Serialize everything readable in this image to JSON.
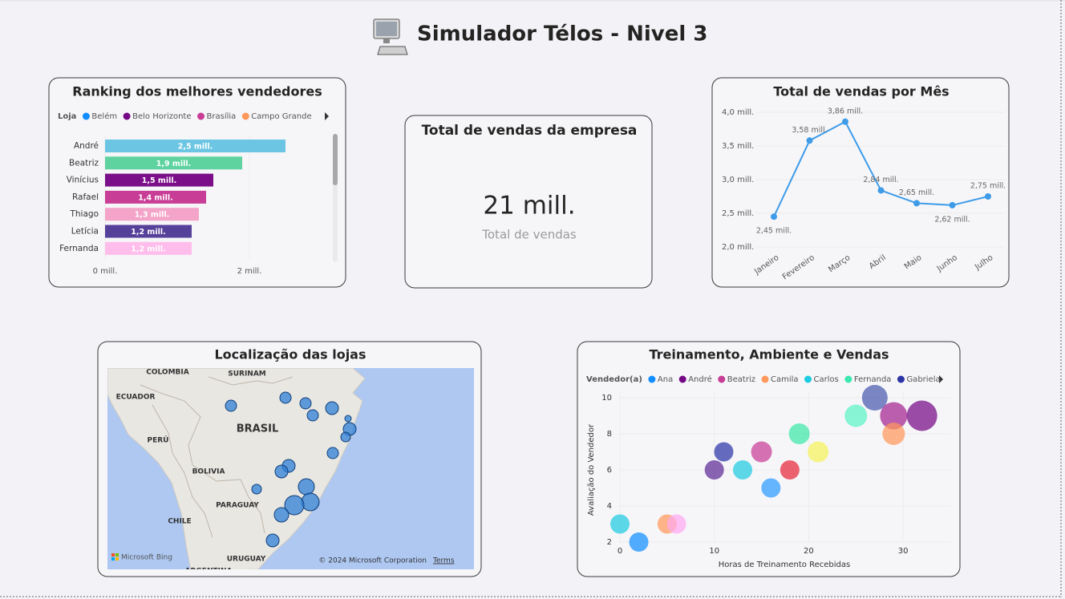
{
  "header": {
    "title": "Simulador Télos - Nivel 3"
  },
  "kpi": {
    "title": "Total de vendas da empresa",
    "value": "21 mill.",
    "label": "Total de vendas"
  },
  "map": {
    "title": "Localização das lojas",
    "labels": [
      "COLOMBIA",
      "SURINAM",
      "ECUADOR",
      "BRASIL",
      "PERÚ",
      "BOLIVIA",
      "PARAGUAY",
      "CHILE",
      "URUGUAY",
      "ARGENTINA"
    ],
    "attribution": "Microsoft Bing",
    "copyright": "© 2024 Microsoft Corporation",
    "terms": "Terms"
  },
  "chart_data": [
    {
      "type": "bar",
      "orientation": "horizontal",
      "title": "Ranking dos melhores vendedores",
      "legend": {
        "title": "Loja",
        "items": [
          {
            "name": "Belém",
            "color": "#118DFF"
          },
          {
            "name": "Belo Horizonte",
            "color": "#750985"
          },
          {
            "name": "Brasília",
            "color": "#C83D95"
          },
          {
            "name": "Campo Grande",
            "color": "#FF985A"
          }
        ]
      },
      "categories": [
        "André",
        "Beatriz",
        "Vinícius",
        "Rafael",
        "Thiago",
        "Letícia",
        "Fernanda"
      ],
      "values": [
        2.5,
        1.9,
        1.5,
        1.4,
        1.3,
        1.2,
        1.2
      ],
      "value_labels": [
        "2,5 mill.",
        "1,9 mill.",
        "1,5 mill.",
        "1,4 mill.",
        "1,3 mill.",
        "1,2 mill.",
        "1,2 mill."
      ],
      "colors": [
        "#6CC6E3",
        "#5ED3A0",
        "#7B0F8A",
        "#C83D95",
        "#F4A4C8",
        "#55409A",
        "#FFBDEB"
      ],
      "xlim": [
        0,
        3
      ],
      "xticks": [
        {
          "value": 0,
          "label": "0 mill."
        },
        {
          "value": 2,
          "label": "2 mill."
        }
      ],
      "grid": true
    },
    {
      "type": "line",
      "title": "Total de vendas por Mês",
      "categories": [
        "Janeiro",
        "Fevereiro",
        "Março",
        "Abril",
        "Maio",
        "Junho",
        "Julho"
      ],
      "values": [
        2.45,
        3.58,
        3.86,
        2.84,
        2.65,
        2.62,
        2.75
      ],
      "value_labels": [
        "2,45 mill.",
        "3,58 mill.",
        "3,86 mill.",
        "2,84 mill.",
        "2,65 mill.",
        "2,62 mill.",
        "2,75 mill."
      ],
      "color": "#3E9BE8",
      "ylim": [
        2,
        4
      ],
      "yticks": [
        {
          "value": 2,
          "label": "2,0 mill."
        },
        {
          "value": 2.5,
          "label": "2,5 mill."
        },
        {
          "value": 3,
          "label": "3,0 mill."
        },
        {
          "value": 3.5,
          "label": "3,5 mill."
        },
        {
          "value": 4,
          "label": "4,0 mill."
        }
      ],
      "grid": true
    },
    {
      "type": "scatter",
      "title": "Treinamento, Ambiente e Vendas",
      "x_label": "Horas de Treinamento Recebidas",
      "y_label": "Avaliação do Vendedor",
      "legend": {
        "title": "Vendedor(a)",
        "items": [
          {
            "name": "Ana",
            "color": "#118DFF"
          },
          {
            "name": "André",
            "color": "#750985"
          },
          {
            "name": "Beatriz",
            "color": "#C83D95"
          },
          {
            "name": "Camila",
            "color": "#FF985A"
          },
          {
            "name": "Carlos",
            "color": "#1ECBE1"
          },
          {
            "name": "Fernanda",
            "color": "#3DE8B0"
          },
          {
            "name": "Gabriela",
            "color": "#2B35A6"
          }
        ]
      },
      "x": [
        0,
        2,
        5,
        6,
        10,
        11,
        13,
        15,
        16,
        18,
        19,
        21,
        25,
        27,
        29,
        29,
        32
      ],
      "y": [
        3,
        2,
        3,
        3,
        6,
        7,
        6,
        7,
        5,
        6,
        8,
        7,
        9,
        10,
        9,
        8,
        9
      ],
      "sizes": [
        12,
        12,
        12,
        12,
        12,
        12,
        12,
        13,
        12,
        12,
        13,
        13,
        14,
        16,
        17,
        14,
        19
      ],
      "colors": [
        "#1ECBE1",
        "#118DFF",
        "#FF985A",
        "#FFA9F0",
        "#5B2A96",
        "#2B35A6",
        "#1ECBE1",
        "#C83D95",
        "#2C9BFF",
        "#E8273A",
        "#3DE8A8",
        "#F7F35A",
        "#5CF2C5",
        "#4A5AAE",
        "#A3238F",
        "#FF985A",
        "#750985"
      ],
      "xlim": [
        0,
        35
      ],
      "ylim": [
        2,
        10
      ],
      "xticks": [
        0,
        10,
        20,
        30
      ],
      "yticks": [
        2,
        4,
        6,
        8,
        10
      ],
      "grid": true
    }
  ]
}
